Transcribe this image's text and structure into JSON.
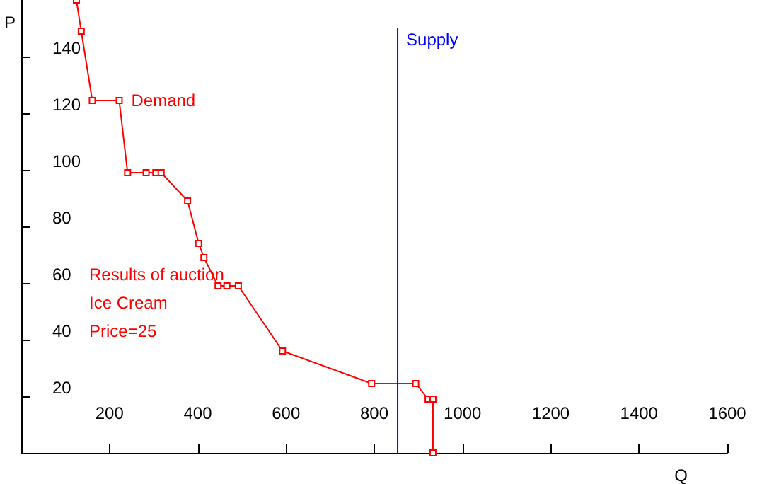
{
  "chart_data": {
    "type": "line",
    "xlabel": "Q",
    "ylabel": "P",
    "xlim": [
      0,
      1600
    ],
    "ylim": [
      0,
      160
    ],
    "xticks": [
      200,
      400,
      600,
      800,
      1000,
      1200,
      1400,
      1600
    ],
    "yticks": [
      20,
      40,
      60,
      80,
      100,
      120,
      140
    ],
    "grid": false,
    "legend": false,
    "marker": "square",
    "line_style": "solid",
    "series": [
      {
        "name": "Demand",
        "color": "#ff0000",
        "x": [
          125,
          136,
          161,
          222,
          241,
          283,
          305,
          317,
          377,
          402,
          414,
          446,
          466,
          492,
          592,
          794,
          894,
          922,
          933,
          933
        ],
        "values": [
          160,
          149,
          124.5,
          124.5,
          99,
          99,
          99,
          99,
          89,
          74,
          69,
          59,
          59,
          59,
          36,
          24.5,
          24.5,
          19,
          19,
          0
        ]
      },
      {
        "name": "Supply",
        "color": "#0000ff",
        "marker": "none",
        "x": [
          853,
          853
        ],
        "values": [
          0,
          150
        ]
      }
    ],
    "annotations": [
      "Results of auction",
      "Ice Cream",
      "Price=25"
    ]
  }
}
